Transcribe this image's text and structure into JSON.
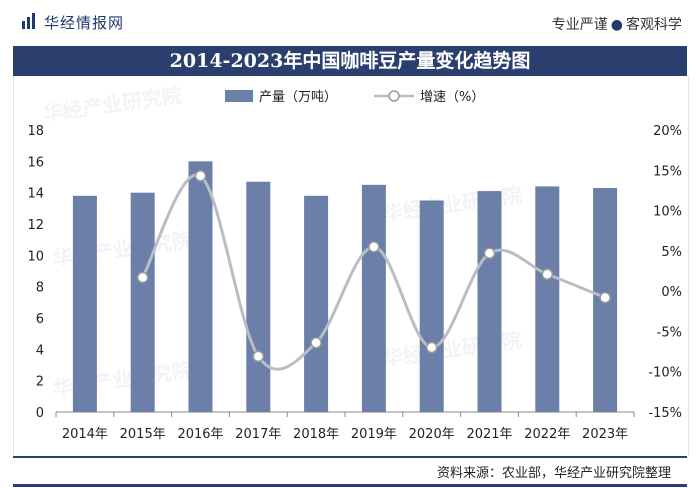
{
  "header": {
    "brand": "华经情报网",
    "slogan_left": "专业严谨",
    "slogan_sep": "●",
    "slogan_right": "客观科学"
  },
  "footer": {
    "source": "资料来源：农业部，华经产业研究院整理"
  },
  "colors": {
    "bar": "#6b7fa8",
    "line": "#b9bdc5",
    "marker_fill": "#ffffff",
    "marker_stroke": "#999999",
    "title_bg": "#2b3f6e"
  },
  "chart_data": {
    "type": "bar",
    "title": "2014-2023年中国咖啡豆产量变化趋势图",
    "categories": [
      "2014年",
      "2015年",
      "2016年",
      "2017年",
      "2018年",
      "2019年",
      "2020年",
      "2021年",
      "2022年",
      "2023年"
    ],
    "series": [
      {
        "name": "产量（万吨）",
        "type": "bar",
        "axis": "left",
        "values": [
          13.8,
          14.0,
          16.0,
          14.7,
          13.8,
          14.5,
          13.5,
          14.1,
          14.4,
          14.3
        ]
      },
      {
        "name": "增速（%）",
        "type": "line",
        "axis": "right",
        "values": [
          null,
          1.7,
          14.3,
          -8.1,
          -6.4,
          5.5,
          -7.0,
          4.7,
          2.1,
          -0.8
        ]
      }
    ],
    "left_axis": {
      "min": 0,
      "max": 18,
      "step": 2,
      "ticks": [
        "0",
        "2",
        "4",
        "6",
        "8",
        "10",
        "12",
        "14",
        "16",
        "18"
      ]
    },
    "right_axis": {
      "min": -15,
      "max": 20,
      "step": 5,
      "ticks": [
        "-15%",
        "-10%",
        "-5%",
        "0%",
        "5%",
        "10%",
        "15%",
        "20%"
      ]
    },
    "legend": {
      "bar_label": "产量（万吨）",
      "line_label": "增速（%）"
    },
    "grid": false
  }
}
